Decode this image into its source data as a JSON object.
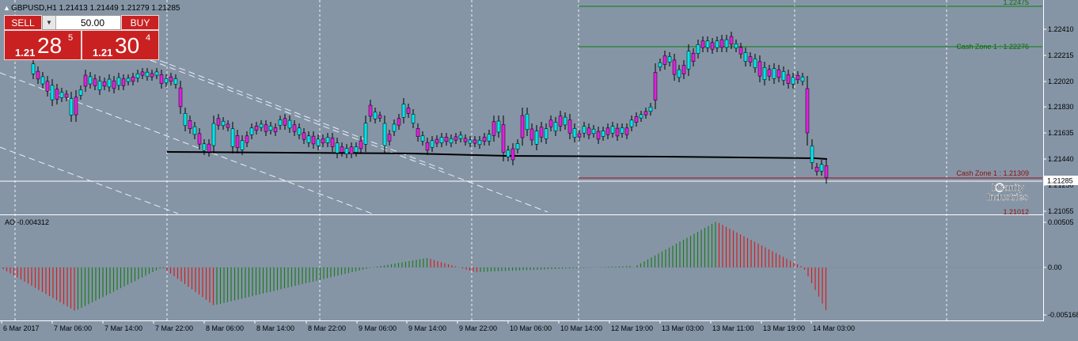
{
  "window": {
    "symbol_header": "GBPUSD,H1  1.21413 1.21449 1.21279 1.21285"
  },
  "trade_panel": {
    "sell_label": "SELL",
    "buy_label": "BUY",
    "lot_value": "50.00",
    "bid_small": "1.21",
    "bid_big": "28",
    "bid_sup": "5",
    "ask_small": "1.21",
    "ask_big": "30",
    "ask_sup": "4"
  },
  "price_axis": {
    "ticks": [
      "1.22410",
      "1.22215",
      "1.22020",
      "1.21830",
      "1.21635",
      "1.21440",
      "1.21250",
      "1.21055"
    ],
    "current_price_label": "1.21285",
    "level_label": "1.21012"
  },
  "levels": {
    "cash_zone_upper": "Cash Zone 1 : 1.22276",
    "cash_zone_lower": "Cash Zone 1 : 1.21309",
    "top_partial": "1.22475"
  },
  "watermark": {
    "line1": "Insanity",
    "line2": "Industries"
  },
  "indicator": {
    "label": "AO -0.004312",
    "ticks": [
      "0.00505",
      "0.00",
      "-0.005168"
    ],
    "value": -0.004312
  },
  "time_axis": {
    "labels": [
      "6 Mar 2017",
      "7 Mar 06:00",
      "7 Mar 14:00",
      "7 Mar 22:00",
      "8 Mar 06:00",
      "8 Mar 14:00",
      "8 Mar 22:00",
      "9 Mar 06:00",
      "9 Mar 14:00",
      "9 Mar 22:00",
      "10 Mar 06:00",
      "10 Mar 14:00",
      "12 Mar 19:00",
      "13 Mar 03:00",
      "13 Mar 11:00",
      "13 Mar 19:00",
      "14 Mar 03:00"
    ]
  },
  "colors": {
    "background": "#8595a6",
    "bull_candle": "#00e5ee",
    "bear_candle": "#e020e0",
    "ao_up": "#1f7a1f",
    "ao_down": "#d02020",
    "cash_zone_upper": "#0a7a0a",
    "cash_zone_lower": "#9a1010"
  }
}
